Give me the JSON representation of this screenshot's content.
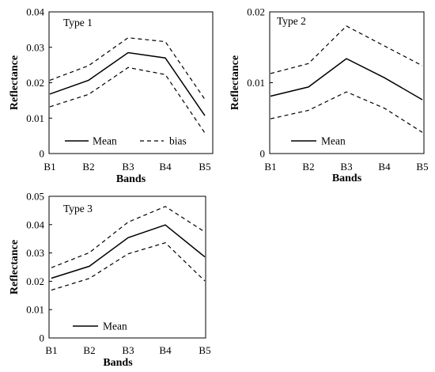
{
  "chart_data": [
    {
      "type": "line",
      "title": "Type 1",
      "xlabel": "Bands",
      "ylabel": "Reflectance",
      "categories": [
        "B1",
        "B2",
        "B3",
        "B4",
        "B5"
      ],
      "ylim": [
        0,
        0.04
      ],
      "yticks": [
        "0",
        "0.01",
        "0.02",
        "0.03",
        "0.04"
      ],
      "grid": false,
      "legend_position": "bottom",
      "legend": [
        "Mean",
        "bias"
      ],
      "series": [
        {
          "name": "Mean",
          "style": "solid",
          "values": [
            0.0168,
            0.0207,
            0.0285,
            0.027,
            0.0107
          ]
        },
        {
          "name": "bias",
          "style": "dashed",
          "values": [
            0.0207,
            0.0248,
            0.0327,
            0.0316,
            0.0153
          ]
        },
        {
          "name": "bias",
          "style": "dashed",
          "values": [
            0.0132,
            0.0167,
            0.0243,
            0.0223,
            0.0058
          ]
        }
      ]
    },
    {
      "type": "line",
      "title": "Type 2",
      "xlabel": "Bands",
      "ylabel": "Reflectance",
      "categories": [
        "B1",
        "B2",
        "B3",
        "B4",
        "B5"
      ],
      "ylim": [
        0,
        0.02
      ],
      "yticks": [
        "0",
        "0.01",
        "0.02"
      ],
      "grid": false,
      "legend_position": "bottom",
      "legend": [
        "Mean"
      ],
      "series": [
        {
          "name": "Mean",
          "style": "solid",
          "values": [
            0.0081,
            0.0094,
            0.0134,
            0.0107,
            0.0076
          ]
        },
        {
          "name": "",
          "style": "dashed",
          "values": [
            0.0113,
            0.0127,
            0.018,
            0.0152,
            0.0124
          ]
        },
        {
          "name": "",
          "style": "dashed",
          "values": [
            0.0049,
            0.0061,
            0.0087,
            0.0064,
            0.003
          ]
        }
      ]
    },
    {
      "type": "line",
      "title": "Type 3",
      "xlabel": "Bands",
      "ylabel": "Reflectance",
      "categories": [
        "B1",
        "B2",
        "B3",
        "B4",
        "B5"
      ],
      "ylim": [
        0,
        0.05
      ],
      "yticks": [
        "0",
        "0.01",
        "0.02",
        "0.03",
        "0.04",
        "0.05"
      ],
      "grid": false,
      "legend_position": "bottom",
      "legend": [
        "Mean"
      ],
      "series": [
        {
          "name": "Mean",
          "style": "solid",
          "values": [
            0.0211,
            0.0253,
            0.0354,
            0.0399,
            0.0286
          ]
        },
        {
          "name": "",
          "style": "dashed",
          "values": [
            0.0248,
            0.0301,
            0.0409,
            0.0464,
            0.0374
          ]
        },
        {
          "name": "",
          "style": "dashed",
          "values": [
            0.0169,
            0.021,
            0.0297,
            0.0336,
            0.0201
          ]
        }
      ]
    }
  ]
}
